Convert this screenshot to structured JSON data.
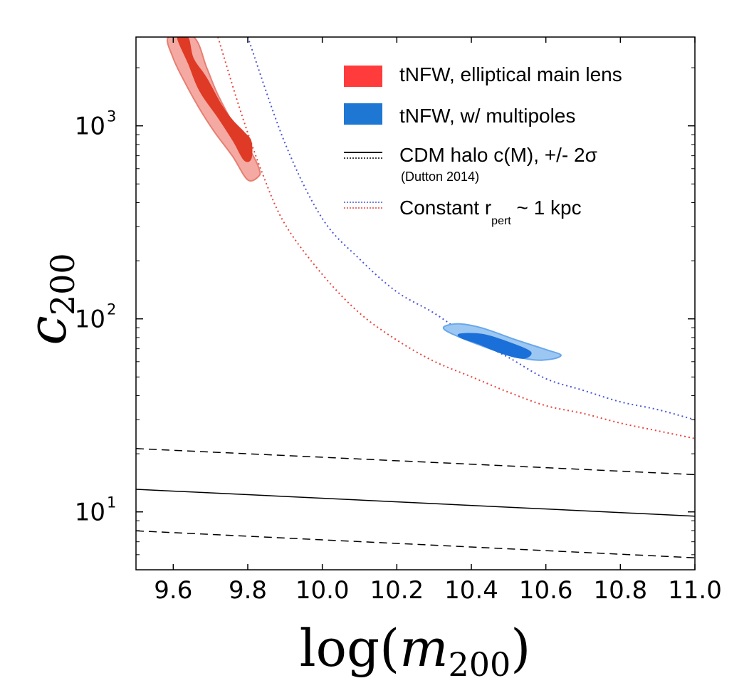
{
  "chart_data": {
    "type": "contour",
    "xlabel": {
      "base": "log(",
      "var": "m",
      "sub": "200",
      "close": ")"
    },
    "ylabel": {
      "var": "c",
      "sub": "200"
    },
    "xlim": [
      9.5,
      11.0
    ],
    "ylog10lim": [
      0.7,
      3.46
    ],
    "yscale": "log",
    "x_ticks": [
      {
        "value": 9.6,
        "label": "9.6"
      },
      {
        "value": 9.8,
        "label": "9.8"
      },
      {
        "value": 10.0,
        "label": "10.0"
      },
      {
        "value": 10.2,
        "label": "10.2"
      },
      {
        "value": 10.4,
        "label": "10.4"
      },
      {
        "value": 10.6,
        "label": "10.6"
      },
      {
        "value": 10.8,
        "label": "10.8"
      },
      {
        "value": 11.0,
        "label": "11.0"
      }
    ],
    "y_ticks": [
      {
        "log10": 1,
        "base": "10",
        "exp": "1"
      },
      {
        "log10": 2,
        "base": "10",
        "exp": "2"
      },
      {
        "log10": 3,
        "base": "10",
        "exp": "3"
      }
    ],
    "cdm_relation": {
      "name": "CDM halo c(M), +/- 2σ",
      "note": "(Dutton 2014)",
      "color": "#000000",
      "median": [
        [
          9.5,
          1.117
        ],
        [
          11.0,
          0.978
        ]
      ],
      "upper": [
        [
          9.5,
          1.328
        ],
        [
          11.0,
          1.193
        ]
      ],
      "lower": [
        [
          9.5,
          0.902
        ],
        [
          11.0,
          0.762
        ]
      ]
    },
    "constant_rpert": {
      "label": "Constant r",
      "sub": "pert",
      "suffix": " ~ 1 kpc",
      "curves": [
        {
          "name": "blue",
          "color": "#4a55d8",
          "points": [
            [
              9.8,
              3.46
            ],
            [
              9.9,
              2.91
            ],
            [
              10.0,
              2.52
            ],
            [
              10.1,
              2.31
            ],
            [
              10.2,
              2.14
            ],
            [
              10.3,
              2.03
            ],
            [
              10.4,
              1.9
            ],
            [
              10.5,
              1.8
            ],
            [
              10.6,
              1.69
            ],
            [
              10.7,
              1.63
            ],
            [
              10.8,
              1.57
            ],
            [
              10.9,
              1.53
            ],
            [
              11.0,
              1.477
            ]
          ]
        },
        {
          "name": "red",
          "color": "#e8443c",
          "points": [
            [
              9.72,
              3.46
            ],
            [
              9.78,
              3.08
            ],
            [
              9.84,
              2.75
            ],
            [
              9.9,
              2.49
            ],
            [
              10.0,
              2.23
            ],
            [
              10.1,
              2.03
            ],
            [
              10.2,
              1.89
            ],
            [
              10.3,
              1.78
            ],
            [
              10.4,
              1.7
            ],
            [
              10.5,
              1.62
            ],
            [
              10.6,
              1.55
            ],
            [
              10.7,
              1.51
            ],
            [
              10.8,
              1.46
            ],
            [
              10.9,
              1.42
            ],
            [
              11.0,
              1.38
            ]
          ]
        }
      ]
    },
    "series": [
      {
        "name": "tNFW, elliptical main lens",
        "color": "#ff3b3b",
        "outer_color": "#f4aaa2",
        "outer_edge": "#e87e72",
        "inner_color": "#df3a26",
        "outer": [
          [
            9.587,
            3.46
          ],
          [
            9.655,
            3.46
          ],
          [
            9.69,
            3.3
          ],
          [
            9.72,
            3.16
          ],
          [
            9.77,
            2.98
          ],
          [
            9.81,
            2.86
          ],
          [
            9.83,
            2.78
          ],
          [
            9.83,
            2.74
          ],
          [
            9.8,
            2.72
          ],
          [
            9.76,
            2.84
          ],
          [
            9.71,
            2.97
          ],
          [
            9.67,
            3.09
          ],
          [
            9.63,
            3.23
          ],
          [
            9.6,
            3.35
          ]
        ],
        "inner": [
          [
            9.61,
            3.46
          ],
          [
            9.64,
            3.46
          ],
          [
            9.655,
            3.35
          ],
          [
            9.69,
            3.25
          ],
          [
            9.73,
            3.11
          ],
          [
            9.76,
            3.03
          ],
          [
            9.79,
            2.97
          ],
          [
            9.81,
            2.92
          ],
          [
            9.81,
            2.83
          ],
          [
            9.79,
            2.82
          ],
          [
            9.76,
            2.92
          ],
          [
            9.72,
            3.04
          ],
          [
            9.67,
            3.18
          ],
          [
            9.64,
            3.32
          ]
        ]
      },
      {
        "name": "tNFW, w/ multipoles",
        "color": "#1f77d4",
        "outer_color": "#9cc7f2",
        "outer_edge": "#68a8ea",
        "inner_color": "#1a6fd8",
        "outer": [
          [
            10.33,
            1.963
          ],
          [
            10.37,
            1.974
          ],
          [
            10.43,
            1.952
          ],
          [
            10.52,
            1.891
          ],
          [
            10.6,
            1.841
          ],
          [
            10.64,
            1.814
          ],
          [
            10.62,
            1.793
          ],
          [
            10.57,
            1.787
          ],
          [
            10.5,
            1.814
          ],
          [
            10.44,
            1.852
          ],
          [
            10.37,
            1.904
          ],
          [
            10.33,
            1.941
          ]
        ],
        "inner": [
          [
            10.37,
            1.924
          ],
          [
            10.43,
            1.922
          ],
          [
            10.5,
            1.881
          ],
          [
            10.56,
            1.83
          ],
          [
            10.54,
            1.793
          ],
          [
            10.48,
            1.82
          ],
          [
            10.42,
            1.868
          ],
          [
            10.37,
            1.902
          ]
        ]
      }
    ]
  }
}
